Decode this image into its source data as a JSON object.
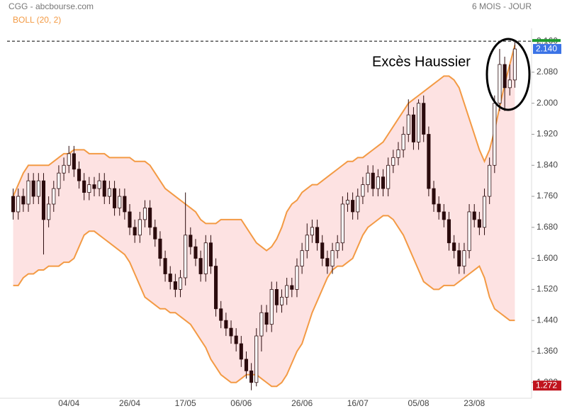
{
  "chart_data": {
    "type": "candlestick",
    "title": "CGG - abcbourse.com",
    "subtitle": "6 MOIS - JOUR",
    "annotation": "Excès Haussier",
    "categories": [
      null,
      null,
      null,
      null,
      null,
      null,
      null,
      null,
      null,
      null,
      null,
      "04/04",
      null,
      null,
      null,
      null,
      null,
      null,
      null,
      null,
      null,
      null,
      null,
      "26/04",
      null,
      null,
      null,
      null,
      null,
      null,
      null,
      null,
      null,
      null,
      "17/05",
      null,
      null,
      null,
      null,
      null,
      null,
      null,
      null,
      null,
      null,
      "06/06",
      null,
      null,
      null,
      null,
      null,
      null,
      null,
      null,
      null,
      null,
      null,
      "26/06",
      null,
      null,
      null,
      null,
      null,
      null,
      null,
      null,
      null,
      null,
      "16/07",
      null,
      null,
      null,
      null,
      null,
      null,
      null,
      null,
      null,
      null,
      null,
      "05/08",
      null,
      null,
      null,
      null,
      null,
      null,
      null,
      null,
      null,
      null,
      "23/08",
      null,
      null,
      null,
      null,
      null,
      null,
      null,
      null
    ],
    "open": [
      1.76,
      1.72,
      1.76,
      1.74,
      1.8,
      1.76,
      1.8,
      1.7,
      1.74,
      1.78,
      1.82,
      1.84,
      1.87,
      1.83,
      1.8,
      1.77,
      1.79,
      1.78,
      1.8,
      1.76,
      1.78,
      1.73,
      1.76,
      1.72,
      1.68,
      1.66,
      1.7,
      1.73,
      1.68,
      1.65,
      1.6,
      1.56,
      1.54,
      1.52,
      1.55,
      1.66,
      1.63,
      1.6,
      1.56,
      1.64,
      1.58,
      1.47,
      1.44,
      1.42,
      1.4,
      1.38,
      1.34,
      1.31,
      1.28,
      1.4,
      1.46,
      1.43,
      1.52,
      1.48,
      1.5,
      1.53,
      1.52,
      1.58,
      1.62,
      1.66,
      1.68,
      1.64,
      1.6,
      1.58,
      1.62,
      1.64,
      1.74,
      1.75,
      1.72,
      1.76,
      1.79,
      1.82,
      1.78,
      1.81,
      1.78,
      1.84,
      1.86,
      1.88,
      1.92,
      1.97,
      1.9,
      2.0,
      1.92,
      1.78,
      1.74,
      1.72,
      1.7,
      1.64,
      1.62,
      1.58,
      1.62,
      1.72,
      1.7,
      1.68,
      1.76,
      1.84,
      2.0,
      2.1,
      2.04,
      2.06
    ],
    "high": [
      1.78,
      1.78,
      1.78,
      1.82,
      1.82,
      1.82,
      1.82,
      1.76,
      1.8,
      1.84,
      1.86,
      1.89,
      1.89,
      1.85,
      1.82,
      1.81,
      1.81,
      1.82,
      1.82,
      1.8,
      1.8,
      1.78,
      1.78,
      1.74,
      1.7,
      1.72,
      1.75,
      1.75,
      1.7,
      1.67,
      1.62,
      1.58,
      1.56,
      1.57,
      1.77,
      1.68,
      1.65,
      1.62,
      1.66,
      1.66,
      1.6,
      1.49,
      1.46,
      1.44,
      1.42,
      1.4,
      1.36,
      1.33,
      1.42,
      1.48,
      1.48,
      1.54,
      1.54,
      1.52,
      1.55,
      1.55,
      1.6,
      1.64,
      1.69,
      1.7,
      1.7,
      1.66,
      1.62,
      1.64,
      1.66,
      1.76,
      1.77,
      1.77,
      1.78,
      1.81,
      1.84,
      1.84,
      1.83,
      1.83,
      1.86,
      1.88,
      1.9,
      1.94,
      2.01,
      1.99,
      2.01,
      2.02,
      1.94,
      1.8,
      1.76,
      1.74,
      1.72,
      1.66,
      1.64,
      1.64,
      1.74,
      1.74,
      1.72,
      1.78,
      1.86,
      2.02,
      2.14,
      2.12,
      2.1,
      2.16
    ],
    "low": [
      1.7,
      1.7,
      1.72,
      1.72,
      1.74,
      1.74,
      1.61,
      1.68,
      1.72,
      1.76,
      1.8,
      1.82,
      1.81,
      1.78,
      1.75,
      1.75,
      1.76,
      1.76,
      1.74,
      1.74,
      1.71,
      1.71,
      1.7,
      1.66,
      1.64,
      1.64,
      1.68,
      1.66,
      1.63,
      1.58,
      1.54,
      1.52,
      1.5,
      1.5,
      1.53,
      1.61,
      1.58,
      1.54,
      1.54,
      1.56,
      1.45,
      1.42,
      1.4,
      1.38,
      1.36,
      1.32,
      1.29,
      1.26,
      1.27,
      1.36,
      1.41,
      1.41,
      1.46,
      1.46,
      1.48,
      1.5,
      1.5,
      1.56,
      1.6,
      1.64,
      1.62,
      1.58,
      1.56,
      1.56,
      1.6,
      1.62,
      1.72,
      1.7,
      1.7,
      1.74,
      1.77,
      1.76,
      1.76,
      1.76,
      1.76,
      1.82,
      1.84,
      1.86,
      1.9,
      1.88,
      1.88,
      1.9,
      1.76,
      1.72,
      1.7,
      1.68,
      1.62,
      1.6,
      1.56,
      1.56,
      1.6,
      1.68,
      1.66,
      1.66,
      1.74,
      1.82,
      1.98,
      1.98,
      2.02,
      2.04
    ],
    "close": [
      1.72,
      1.76,
      1.74,
      1.8,
      1.76,
      1.8,
      1.7,
      1.74,
      1.78,
      1.82,
      1.84,
      1.87,
      1.83,
      1.8,
      1.77,
      1.79,
      1.78,
      1.8,
      1.76,
      1.78,
      1.73,
      1.76,
      1.72,
      1.68,
      1.66,
      1.7,
      1.73,
      1.68,
      1.65,
      1.6,
      1.56,
      1.54,
      1.52,
      1.55,
      1.66,
      1.63,
      1.6,
      1.56,
      1.64,
      1.58,
      1.47,
      1.44,
      1.42,
      1.4,
      1.38,
      1.34,
      1.31,
      1.28,
      1.4,
      1.46,
      1.43,
      1.52,
      1.48,
      1.5,
      1.53,
      1.52,
      1.58,
      1.62,
      1.66,
      1.68,
      1.64,
      1.6,
      1.58,
      1.62,
      1.64,
      1.74,
      1.75,
      1.72,
      1.76,
      1.79,
      1.82,
      1.78,
      1.81,
      1.78,
      1.84,
      1.86,
      1.88,
      1.92,
      1.97,
      1.9,
      2.0,
      1.92,
      1.78,
      1.74,
      1.72,
      1.7,
      1.64,
      1.62,
      1.58,
      1.62,
      1.72,
      1.7,
      1.68,
      1.76,
      1.84,
      2.0,
      2.1,
      2.04,
      2.06,
      2.14
    ],
    "up_color": "#ffffff",
    "down_color": "#2b0b0d",
    "bands": {
      "name": "BOLL (20, 2)",
      "color": "#f39a44",
      "fill": "#fde2e2",
      "upper": [
        1.76,
        1.79,
        1.82,
        1.84,
        1.84,
        1.84,
        1.84,
        1.84,
        1.85,
        1.86,
        1.87,
        1.87,
        1.88,
        1.88,
        1.88,
        1.87,
        1.87,
        1.87,
        1.87,
        1.86,
        1.86,
        1.86,
        1.86,
        1.86,
        1.85,
        1.85,
        1.85,
        1.84,
        1.82,
        1.8,
        1.78,
        1.77,
        1.76,
        1.75,
        1.74,
        1.73,
        1.72,
        1.7,
        1.69,
        1.69,
        1.69,
        1.7,
        1.7,
        1.7,
        1.7,
        1.7,
        1.68,
        1.66,
        1.64,
        1.63,
        1.62,
        1.63,
        1.65,
        1.68,
        1.72,
        1.74,
        1.75,
        1.77,
        1.78,
        1.79,
        1.79,
        1.8,
        1.81,
        1.82,
        1.83,
        1.84,
        1.85,
        1.85,
        1.86,
        1.86,
        1.87,
        1.88,
        1.89,
        1.9,
        1.92,
        1.94,
        1.96,
        1.98,
        2.0,
        2.01,
        2.02,
        2.03,
        2.04,
        2.05,
        2.06,
        2.07,
        2.07,
        2.06,
        2.04,
        2.0,
        1.96,
        1.92,
        1.88,
        1.85,
        1.88,
        1.93,
        1.99,
        2.05,
        2.1,
        2.15
      ],
      "lower": [
        1.53,
        1.53,
        1.55,
        1.56,
        1.56,
        1.57,
        1.57,
        1.58,
        1.58,
        1.58,
        1.59,
        1.59,
        1.6,
        1.63,
        1.66,
        1.67,
        1.67,
        1.66,
        1.65,
        1.64,
        1.63,
        1.62,
        1.61,
        1.59,
        1.56,
        1.53,
        1.5,
        1.49,
        1.48,
        1.47,
        1.47,
        1.46,
        1.46,
        1.45,
        1.44,
        1.43,
        1.41,
        1.39,
        1.37,
        1.34,
        1.32,
        1.3,
        1.29,
        1.28,
        1.28,
        1.29,
        1.3,
        1.3,
        1.3,
        1.29,
        1.28,
        1.27,
        1.27,
        1.28,
        1.3,
        1.33,
        1.36,
        1.38,
        1.42,
        1.46,
        1.49,
        1.52,
        1.55,
        1.57,
        1.58,
        1.58,
        1.59,
        1.6,
        1.63,
        1.66,
        1.68,
        1.69,
        1.7,
        1.71,
        1.71,
        1.7,
        1.68,
        1.66,
        1.63,
        1.6,
        1.57,
        1.54,
        1.53,
        1.52,
        1.52,
        1.53,
        1.53,
        1.53,
        1.54,
        1.55,
        1.56,
        1.57,
        1.58,
        1.55,
        1.5,
        1.47,
        1.46,
        1.45,
        1.44,
        1.44
      ]
    },
    "ylim": [
      1.243,
      2.184
    ],
    "yticks": [
      {
        "value": 2.16,
        "label": "2.160"
      },
      {
        "value": 2.08,
        "label": "2.080"
      },
      {
        "value": 2,
        "label": "2.000"
      },
      {
        "value": 1.92,
        "label": "1.920"
      },
      {
        "value": 1.84,
        "label": "1.840"
      },
      {
        "value": 1.76,
        "label": "1.760"
      },
      {
        "value": 1.68,
        "label": "1.680"
      },
      {
        "value": 1.6,
        "label": "1.600"
      },
      {
        "value": 1.52,
        "label": "1.520"
      },
      {
        "value": 1.44,
        "label": "1.440"
      },
      {
        "value": 1.36,
        "label": "1.360"
      },
      {
        "value": 1.28,
        "label": "1.280"
      }
    ],
    "hline": 2.16,
    "markers": [
      {
        "value": 2.14,
        "label": "2.140",
        "color": "#3b73e6"
      },
      {
        "value": 1.272,
        "label": "1.272",
        "color": "#c0141e"
      }
    ]
  }
}
